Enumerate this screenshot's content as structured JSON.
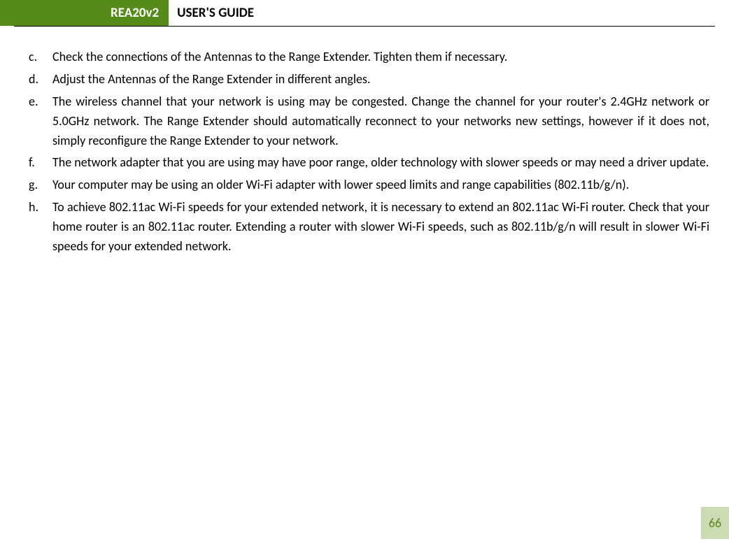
{
  "header": {
    "badge": "REA20v2",
    "title": "USER'S GUIDE"
  },
  "colors": {
    "accent": "#568a1a",
    "page_badge_bg": "#cddbb5",
    "page_badge_text": "#568a1a",
    "text": "#000000",
    "background": "#ffffff"
  },
  "typography": {
    "body_fontsize": 18,
    "header_fontsize": 19,
    "line_height": 1.55
  },
  "list": [
    {
      "marker": "c.",
      "text": "Check the connections of the Antennas to the Range Extender. Tighten them if necessary."
    },
    {
      "marker": "d.",
      "text": "Adjust the Antennas of the Range Extender in different angles."
    },
    {
      "marker": "e.",
      "text": "The wireless channel that your network is using may be congested. Change the channel for your router's 2.4GHz network or 5.0GHz network. The Range Extender should automatically reconnect to your networks new settings, however if it does not, simply reconfigure the Range Extender to your network."
    },
    {
      "marker": "f.",
      "text": "The network adapter that you are using may have poor range, older technology with slower speeds or may need a driver update."
    },
    {
      "marker": "g.",
      "text": "Your computer may be using an older Wi-Fi adapter with lower speed limits and range capabilities (802.11b/g/n)."
    },
    {
      "marker": "h.",
      "text": "To achieve 802.11ac Wi-Fi speeds for your extended network, it is necessary to extend an 802.11ac Wi-Fi router.  Check that your home router is an 802.11ac router.  Extending a router with slower Wi-Fi speeds, such as 802.11b/g/n will result in slower Wi-Fi speeds for your extended network."
    }
  ],
  "page_number": "66"
}
